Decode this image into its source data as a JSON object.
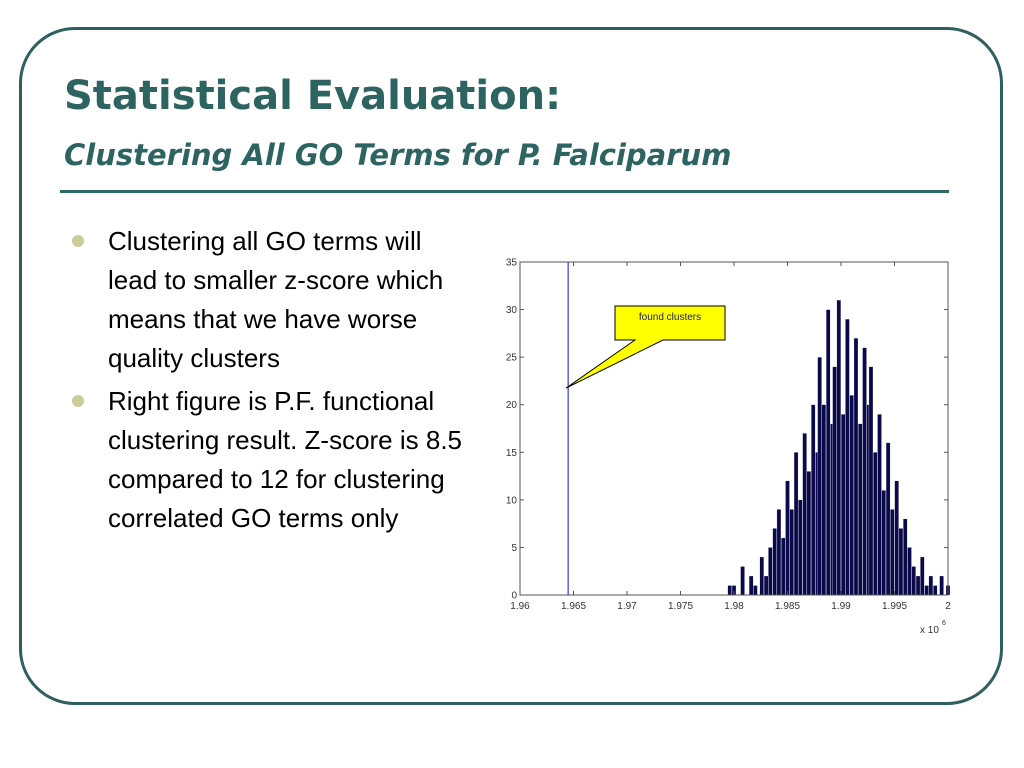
{
  "slide": {
    "title": "Statistical Evaluation:",
    "subtitle": "Clustering All GO Terms for P. Falciparum",
    "bullets": [
      "Clustering all GO terms will lead to smaller z-score which means that we have worse quality clusters",
      "Right figure is P.F. functional clustering result. Z-score is 8.5 compared to 12 for clustering correlated GO terms only"
    ]
  },
  "colors": {
    "title": "#2d6462",
    "frame": "#2f5f5e",
    "bullet": "#cccc99",
    "bars": "#0a0a4a",
    "marker_line": "#3a3acc",
    "callout": "#ffff00"
  },
  "chart_data": {
    "type": "bar",
    "xlim": [
      1.96,
      2.0
    ],
    "ylim": [
      0,
      35
    ],
    "xticks": [
      "1.96",
      "1.965",
      "1.97",
      "1.975",
      "1.98",
      "1.985",
      "1.99",
      "1.995",
      "2"
    ],
    "yticks": [
      "0",
      "5",
      "10",
      "15",
      "20",
      "25",
      "30",
      "35"
    ],
    "x_multiplier_base": "x 10",
    "x_multiplier_exp": "6",
    "marker_x": 1.9645,
    "annotation": "found clusters",
    "bins": [
      {
        "x": 1.9796,
        "y": 1
      },
      {
        "x": 1.98,
        "y": 1
      },
      {
        "x": 1.9808,
        "y": 3
      },
      {
        "x": 1.9816,
        "y": 2
      },
      {
        "x": 1.982,
        "y": 1
      },
      {
        "x": 1.9826,
        "y": 4
      },
      {
        "x": 1.983,
        "y": 2
      },
      {
        "x": 1.9834,
        "y": 5
      },
      {
        "x": 1.9838,
        "y": 7
      },
      {
        "x": 1.9842,
        "y": 9
      },
      {
        "x": 1.9846,
        "y": 6
      },
      {
        "x": 1.985,
        "y": 12
      },
      {
        "x": 1.9854,
        "y": 9
      },
      {
        "x": 1.9858,
        "y": 15
      },
      {
        "x": 1.9862,
        "y": 10
      },
      {
        "x": 1.9866,
        "y": 17
      },
      {
        "x": 1.987,
        "y": 13
      },
      {
        "x": 1.9874,
        "y": 20
      },
      {
        "x": 1.9878,
        "y": 15
      },
      {
        "x": 1.988,
        "y": 25
      },
      {
        "x": 1.9884,
        "y": 20
      },
      {
        "x": 1.9888,
        "y": 30
      },
      {
        "x": 1.9892,
        "y": 18
      },
      {
        "x": 1.9894,
        "y": 24
      },
      {
        "x": 1.9898,
        "y": 31
      },
      {
        "x": 1.9902,
        "y": 19
      },
      {
        "x": 1.9906,
        "y": 29
      },
      {
        "x": 1.991,
        "y": 21
      },
      {
        "x": 1.9914,
        "y": 27
      },
      {
        "x": 1.9918,
        "y": 18
      },
      {
        "x": 1.9922,
        "y": 26
      },
      {
        "x": 1.9926,
        "y": 20
      },
      {
        "x": 1.9928,
        "y": 24
      },
      {
        "x": 1.9932,
        "y": 15
      },
      {
        "x": 1.9936,
        "y": 19
      },
      {
        "x": 1.994,
        "y": 11
      },
      {
        "x": 1.9944,
        "y": 16
      },
      {
        "x": 1.9948,
        "y": 9
      },
      {
        "x": 1.9952,
        "y": 12
      },
      {
        "x": 1.9956,
        "y": 7
      },
      {
        "x": 1.996,
        "y": 8
      },
      {
        "x": 1.9964,
        "y": 5
      },
      {
        "x": 1.9968,
        "y": 3
      },
      {
        "x": 1.9972,
        "y": 2
      },
      {
        "x": 1.9976,
        "y": 4
      },
      {
        "x": 1.998,
        "y": 1
      },
      {
        "x": 1.9984,
        "y": 2
      },
      {
        "x": 1.9988,
        "y": 1
      },
      {
        "x": 1.9994,
        "y": 2
      },
      {
        "x": 2.0,
        "y": 1
      }
    ]
  }
}
